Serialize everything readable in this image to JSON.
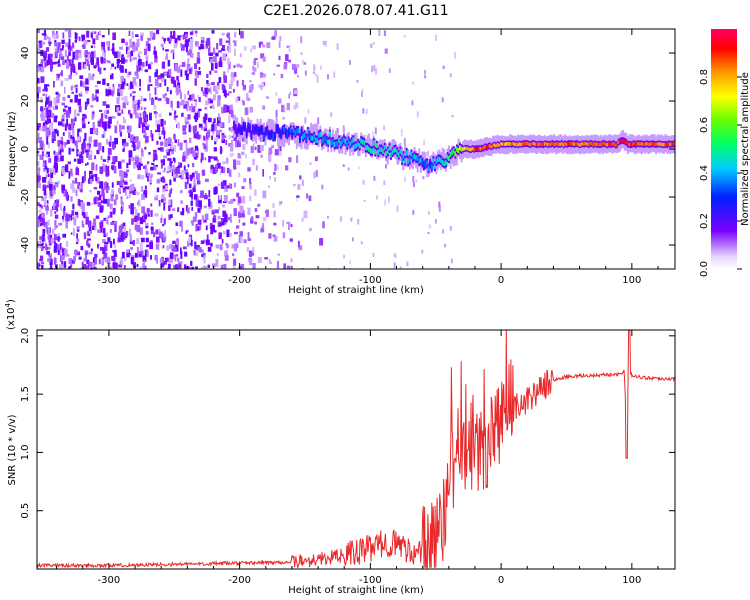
{
  "figure_title": "C2E1.2026.078.07.41.G11",
  "chart_data": [
    {
      "type": "heatmap",
      "panel": "spectrogram",
      "xlabel": "Height of straight line (km)",
      "ylabel": "Frequency (Hz)",
      "xlim": [
        -355,
        133
      ],
      "ylim": [
        -50,
        50
      ],
      "xticks": [
        -300,
        -200,
        -100,
        0,
        100
      ],
      "xtick_labels": [
        "-300",
        "-200",
        "-100",
        "0",
        "100"
      ],
      "yticks": [
        -40,
        -20,
        0,
        20,
        40
      ],
      "ytick_labels": [
        "-40",
        "-20",
        "0",
        "20",
        "40"
      ],
      "colorbar": {
        "label": "Normalized spectral amplitude",
        "range": [
          0,
          1
        ],
        "ticks": [
          0.0,
          0.2,
          0.4,
          0.6,
          0.8
        ],
        "tick_labels": [
          "0.0",
          "0.2",
          "0.4",
          "0.6",
          "0.8"
        ]
      },
      "noise_region_x": [
        -355,
        -175
      ],
      "ridge_frequency_trace": {
        "x": [
          -205,
          -180,
          -160,
          -140,
          -120,
          -100,
          -80,
          -65,
          -55,
          -45,
          -38,
          -30,
          -20,
          -10,
          0,
          20,
          60,
          88,
          92,
          96,
          133
        ],
        "freq": [
          8,
          7,
          6,
          5,
          3,
          1,
          -2,
          -5,
          -7,
          -5,
          -2,
          0,
          0,
          1,
          2,
          2,
          2,
          2,
          4,
          2,
          2
        ],
        "amplitude": [
          0.2,
          0.28,
          0.32,
          0.4,
          0.42,
          0.45,
          0.48,
          0.4,
          0.35,
          0.45,
          0.55,
          0.7,
          0.9,
          0.85,
          0.8,
          0.85,
          0.86,
          0.86,
          0.95,
          0.86,
          0.86
        ]
      }
    },
    {
      "type": "line",
      "panel": "snr",
      "xlabel": "Height of straight line (km)",
      "ylabel": "SNR (10 * v/v)",
      "scale_label": "(x10",
      "scale_exponent": "4",
      "scale_close": ")",
      "xlim": [
        -355,
        133
      ],
      "ylim": [
        0,
        2.05
      ],
      "xticks": [
        -300,
        -200,
        -100,
        0,
        100
      ],
      "xtick_labels": [
        "-300",
        "-200",
        "-100",
        "0",
        "100"
      ],
      "yticks": [
        0.5,
        1.0,
        1.5,
        2.0
      ],
      "ytick_labels": [
        "0.5",
        "1.0",
        "1.5",
        "2.0"
      ],
      "series": [
        {
          "name": "SNR",
          "color": "#e8282a",
          "x": [
            -355,
            -300,
            -250,
            -200,
            -160,
            -150,
            -130,
            -110,
            -100,
            -90,
            -80,
            -70,
            -60,
            -55,
            -50,
            -45,
            -40,
            -35,
            -30,
            -25,
            -20,
            -15,
            -10,
            -5,
            0,
            5,
            10,
            20,
            30,
            40,
            50,
            70,
            90,
            94,
            96,
            98,
            100,
            110,
            133
          ],
          "y": [
            0.03,
            0.03,
            0.04,
            0.05,
            0.06,
            0.07,
            0.1,
            0.14,
            0.18,
            0.22,
            0.22,
            0.16,
            0.12,
            0.12,
            0.22,
            0.45,
            0.7,
            0.9,
            1.0,
            1.1,
            1.1,
            1.05,
            1.15,
            1.2,
            1.25,
            1.3,
            1.4,
            1.45,
            1.55,
            1.62,
            1.65,
            1.66,
            1.67,
            1.7,
            1.3,
            1.72,
            1.66,
            1.64,
            1.63
          ]
        }
      ]
    }
  ]
}
